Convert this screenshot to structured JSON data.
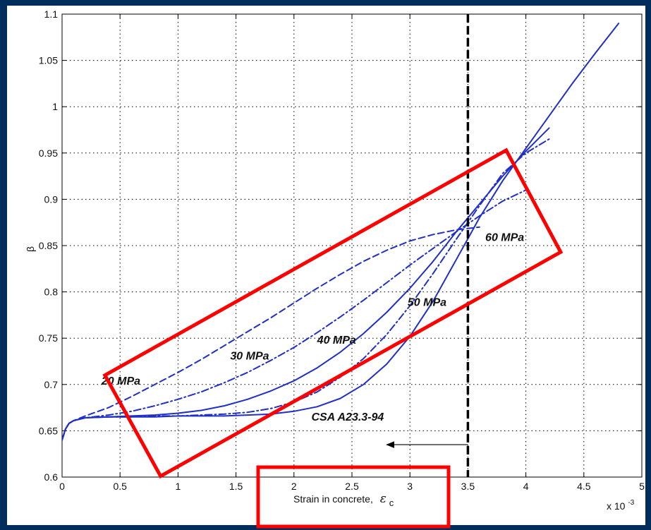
{
  "chart_data": {
    "type": "line",
    "title": "",
    "xlabel": "Strain in concrete,",
    "xlabel_symbol": "ε",
    "xlabel_subscript": "c",
    "x_multiplier": "x 10",
    "x_multiplier_exp": "-3",
    "ylabel": "β",
    "xlim": [
      0,
      5
    ],
    "ylim": [
      0.6,
      1.1
    ],
    "x_ticks": [
      0,
      0.5,
      1,
      1.5,
      2,
      2.5,
      3,
      3.5,
      4,
      4.5,
      5
    ],
    "x_tick_labels": [
      "0",
      "0.5",
      "1",
      "1.5",
      "2",
      "2.5",
      "3",
      "3.5",
      "4",
      "4.5",
      "5"
    ],
    "y_ticks": [
      0.6,
      0.65,
      0.7,
      0.75,
      0.8,
      0.85,
      0.9,
      0.95,
      1,
      1.05,
      1.1
    ],
    "y_tick_labels": [
      "0.6",
      "0.65",
      "0.7",
      "0.75",
      "0.8",
      "0.85",
      "0.9",
      "0.95",
      "1",
      "1.05",
      "1.1"
    ],
    "grid": true,
    "series": [
      {
        "name": "20 MPa",
        "style": "dashed",
        "x": [
          0.0,
          0.03,
          0.06,
          0.1,
          0.2,
          0.4,
          0.6,
          0.8,
          1.0,
          1.2,
          1.4,
          1.6,
          1.8,
          2.0,
          2.2,
          2.4,
          2.6,
          2.8,
          3.0,
          3.2,
          3.4,
          3.6
        ],
        "y": [
          0.64,
          0.652,
          0.658,
          0.661,
          0.666,
          0.675,
          0.687,
          0.7,
          0.713,
          0.727,
          0.742,
          0.757,
          0.772,
          0.788,
          0.804,
          0.819,
          0.833,
          0.845,
          0.855,
          0.862,
          0.867,
          0.87
        ]
      },
      {
        "name": "30 MPa",
        "style": "dashdot",
        "x": [
          0.0,
          0.03,
          0.06,
          0.1,
          0.2,
          0.4,
          0.6,
          0.8,
          1.0,
          1.2,
          1.4,
          1.6,
          1.8,
          2.0,
          2.2,
          2.4,
          2.6,
          2.8,
          3.0,
          3.2,
          3.4,
          3.6,
          3.8,
          4.0
        ],
        "y": [
          0.64,
          0.652,
          0.658,
          0.661,
          0.664,
          0.667,
          0.671,
          0.677,
          0.684,
          0.692,
          0.702,
          0.713,
          0.726,
          0.74,
          0.756,
          0.773,
          0.791,
          0.81,
          0.829,
          0.847,
          0.865,
          0.882,
          0.898,
          0.91
        ]
      },
      {
        "name": "40 MPa",
        "style": "solid",
        "x": [
          0.0,
          0.03,
          0.06,
          0.1,
          0.2,
          0.4,
          0.6,
          0.8,
          1.0,
          1.2,
          1.4,
          1.6,
          1.8,
          2.0,
          2.2,
          2.4,
          2.6,
          2.8,
          3.0,
          3.2,
          3.4,
          3.6,
          3.8,
          4.0,
          4.2
        ],
        "y": [
          0.64,
          0.652,
          0.658,
          0.661,
          0.664,
          0.665,
          0.666,
          0.667,
          0.669,
          0.672,
          0.677,
          0.684,
          0.693,
          0.704,
          0.718,
          0.735,
          0.755,
          0.778,
          0.804,
          0.833,
          0.865,
          0.895,
          0.925,
          0.952,
          0.977
        ]
      },
      {
        "name": "50 MPa",
        "style": "dashdot",
        "x": [
          0.0,
          0.03,
          0.06,
          0.1,
          0.2,
          0.4,
          0.6,
          0.8,
          1.0,
          1.2,
          1.4,
          1.6,
          1.8,
          2.0,
          2.2,
          2.4,
          2.6,
          2.8,
          3.0,
          3.2,
          3.4,
          3.6,
          3.8,
          4.0,
          4.2
        ],
        "y": [
          0.64,
          0.652,
          0.658,
          0.661,
          0.664,
          0.665,
          0.665,
          0.666,
          0.666,
          0.667,
          0.668,
          0.67,
          0.674,
          0.681,
          0.692,
          0.708,
          0.728,
          0.754,
          0.785,
          0.82,
          0.857,
          0.893,
          0.928,
          0.95,
          0.965
        ]
      },
      {
        "name": "60 MPa",
        "style": "solid",
        "x": [
          0.0,
          0.03,
          0.06,
          0.1,
          0.2,
          0.4,
          0.6,
          0.8,
          1.0,
          1.2,
          1.4,
          1.6,
          1.8,
          2.0,
          2.2,
          2.4,
          2.6,
          2.8,
          3.0,
          3.2,
          3.4,
          3.6,
          3.8,
          4.0,
          4.2,
          4.4,
          4.6,
          4.8
        ],
        "y": [
          0.64,
          0.652,
          0.658,
          0.661,
          0.664,
          0.665,
          0.665,
          0.665,
          0.666,
          0.666,
          0.666,
          0.667,
          0.668,
          0.671,
          0.676,
          0.685,
          0.7,
          0.722,
          0.752,
          0.79,
          0.835,
          0.88,
          0.92,
          0.955,
          0.99,
          1.025,
          1.058,
          1.09
        ]
      }
    ],
    "reference_line": {
      "label": "CSA A23.3-94",
      "x": 3.5
    },
    "arrow": {
      "from": [
        3.5,
        0.635
      ],
      "to": [
        2.8,
        0.635
      ]
    },
    "annotations": [
      {
        "text": "20 MPa",
        "x": 0.34,
        "y": 0.7
      },
      {
        "text": "30 MPa",
        "x": 1.45,
        "y": 0.727
      },
      {
        "text": "40 MPa",
        "x": 2.2,
        "y": 0.744
      },
      {
        "text": "50 MPa",
        "x": 2.98,
        "y": 0.785
      },
      {
        "text": "60 MPa",
        "x": 3.65,
        "y": 0.855
      },
      {
        "text": "CSA A23.3-94",
        "x": 2.15,
        "y": 0.661
      }
    ],
    "highlight_boxes": [
      {
        "name": "curves-region-box",
        "color": "#FF0000",
        "corners": [
          [
            0.37,
            0.71
          ],
          [
            3.83,
            0.953
          ],
          [
            4.3,
            0.843
          ],
          [
            0.85,
            0.601
          ]
        ]
      }
    ],
    "series_color": "#1F2FC8",
    "reference_color": "#000000",
    "highlight_color": "#FF0000"
  }
}
